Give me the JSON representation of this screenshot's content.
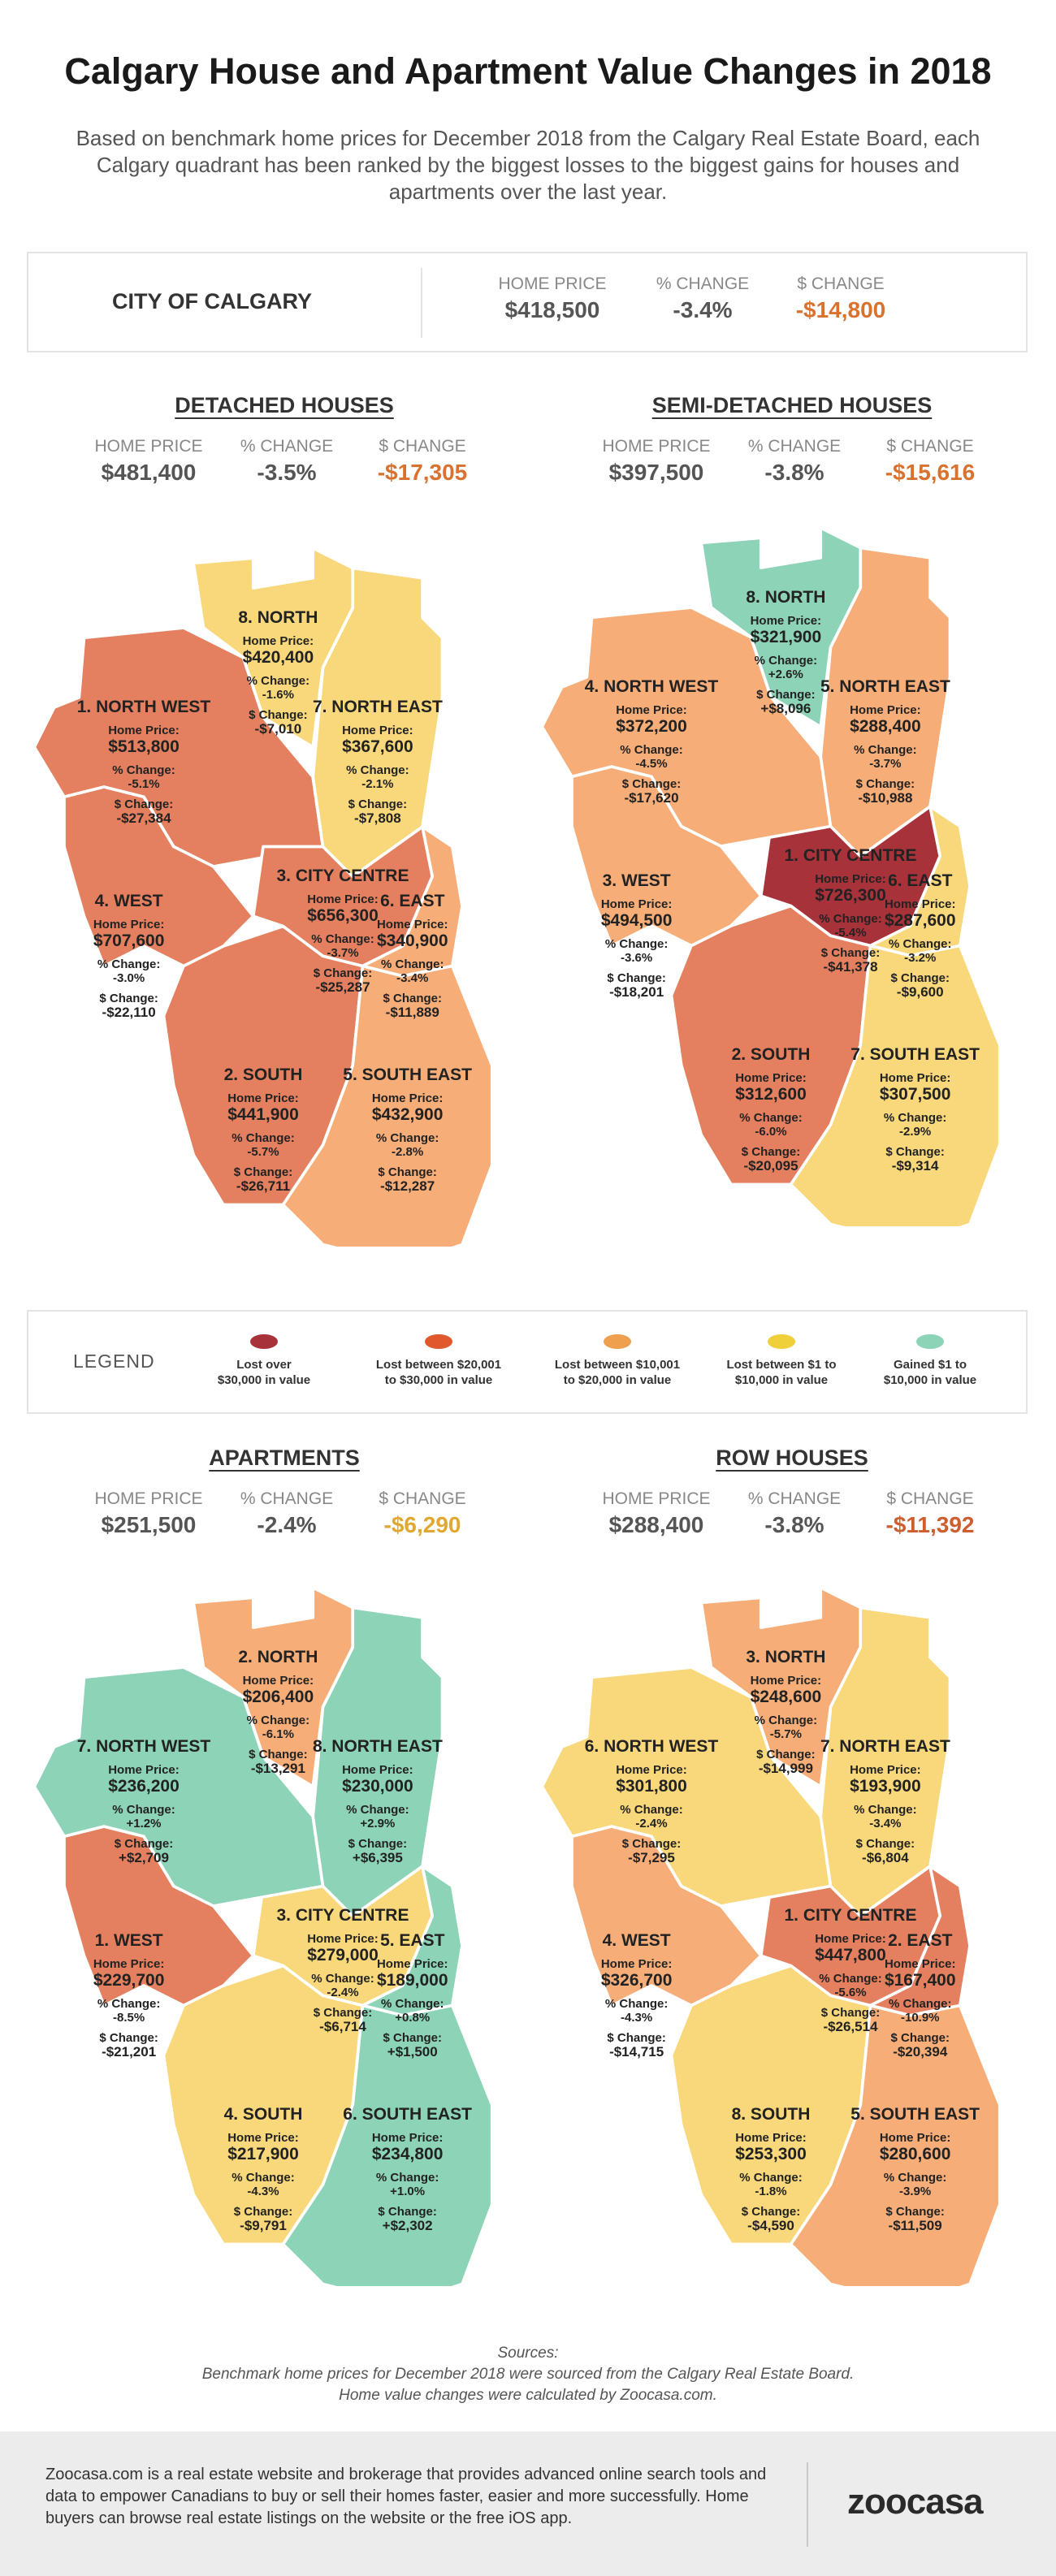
{
  "title": "Calgary House and Apartment Value Changes in 2018",
  "subtitle": "Based on benchmark home prices for December 2018 from the Calgary Real Estate Board, each Calgary quadrant has been ranked by the biggest losses to the biggest gains for houses and apartments over the last year.",
  "colors": {
    "lost_over_30000": "#a8323a",
    "lost_20001_30000": "#e4805f",
    "lost_10001_20000": "#f6ad78",
    "lost_1_10000": "#f8d87a",
    "gained_1_10000": "#8dd3b8"
  },
  "city": {
    "name": "CITY OF CALGARY",
    "home_price_label": "HOME PRICE",
    "pct_label": "% CHANGE",
    "dollar_label": "$ CHANGE",
    "home_price": "$418,500",
    "pct_change": "-3.4%",
    "dollar_change": "-$14,800"
  },
  "labels": {
    "home_price": "Home Price:",
    "pct_change": "% Change:",
    "dollar_change": "$ Change:"
  },
  "sections": {
    "detached": {
      "title": "DETACHED HOUSES",
      "home_price_label": "HOME PRICE",
      "pct_label": "% CHANGE",
      "dollar_label": "$ CHANGE",
      "home_price": "$481,400",
      "pct_change": "-3.5%",
      "dollar_change": "-$17,305",
      "regions": [
        {
          "name": "1. NORTH WEST",
          "price": "$513,800",
          "pct": "-5.1%",
          "dollar": "-$27,384",
          "fill": "lost_20001_30000"
        },
        {
          "name": "2. SOUTH",
          "price": "$441,900",
          "pct": "-5.7%",
          "dollar": "-$26,711",
          "fill": "lost_20001_30000"
        },
        {
          "name": "3. CITY CENTRE",
          "price": "$656,300",
          "pct": "-3.7%",
          "dollar": "-$25,287",
          "fill": "lost_20001_30000"
        },
        {
          "name": "4. WEST",
          "price": "$707,600",
          "pct": "-3.0%",
          "dollar": "-$22,110",
          "fill": "lost_20001_30000"
        },
        {
          "name": "5. SOUTH EAST",
          "price": "$432,900",
          "pct": "-2.8%",
          "dollar": "-$12,287",
          "fill": "lost_10001_20000"
        },
        {
          "name": "6. EAST",
          "price": "$340,900",
          "pct": "-3.4%",
          "dollar": "-$11,889",
          "fill": "lost_10001_20000"
        },
        {
          "name": "7. NORTH EAST",
          "price": "$367,600",
          "pct": "-2.1%",
          "dollar": "-$7,808",
          "fill": "lost_1_10000"
        },
        {
          "name": "8. NORTH",
          "price": "$420,400",
          "pct": "-1.6%",
          "dollar": "-$7,010",
          "fill": "lost_1_10000"
        }
      ]
    },
    "semi": {
      "title": "SEMI-DETACHED HOUSES",
      "home_price_label": "HOME PRICE",
      "pct_label": "% CHANGE",
      "dollar_label": "$ CHANGE",
      "home_price": "$397,500",
      "pct_change": "-3.8%",
      "dollar_change": "-$15,616",
      "regions": [
        {
          "name": "1. CITY CENTRE",
          "price": "$726,300",
          "pct": "-5.4%",
          "dollar": "-$41,378",
          "fill": "lost_over_30000"
        },
        {
          "name": "2. SOUTH",
          "price": "$312,600",
          "pct": "-6.0%",
          "dollar": "-$20,095",
          "fill": "lost_20001_30000"
        },
        {
          "name": "3. WEST",
          "price": "$494,500",
          "pct": "-3.6%",
          "dollar": "-$18,201",
          "fill": "lost_10001_20000"
        },
        {
          "name": "4. NORTH WEST",
          "price": "$372,200",
          "pct": "-4.5%",
          "dollar": "-$17,620",
          "fill": "lost_10001_20000"
        },
        {
          "name": "5. NORTH EAST",
          "price": "$288,400",
          "pct": "-3.7%",
          "dollar": "-$10,988",
          "fill": "lost_10001_20000"
        },
        {
          "name": "6. EAST",
          "price": "$287,600",
          "pct": "-3.2%",
          "dollar": "-$9,600",
          "fill": "lost_1_10000"
        },
        {
          "name": "7. SOUTH EAST",
          "price": "$307,500",
          "pct": "-2.9%",
          "dollar": "-$9,314",
          "fill": "lost_1_10000"
        },
        {
          "name": "8. NORTH",
          "price": "$321,900",
          "pct": "+2.6%",
          "dollar": "+$8,096",
          "fill": "gained_1_10000"
        }
      ]
    },
    "apartments": {
      "title": "APARTMENTS",
      "home_price_label": "HOME PRICE",
      "pct_label": "% CHANGE",
      "dollar_label": "$ CHANGE",
      "home_price": "$251,500",
      "pct_change": "-2.4%",
      "dollar_change": "-$6,290",
      "regions": [
        {
          "name": "1. WEST",
          "price": "$229,700",
          "pct": "-8.5%",
          "dollar": "-$21,201",
          "fill": "lost_20001_30000"
        },
        {
          "name": "2. NORTH",
          "price": "$206,400",
          "pct": "-6.1%",
          "dollar": "-$13,291",
          "fill": "lost_10001_20000"
        },
        {
          "name": "4. SOUTH",
          "price": "$217,900",
          "pct": "-4.3%",
          "dollar": "-$9,791",
          "fill": "lost_1_10000"
        },
        {
          "name": "3. CITY CENTRE",
          "price": "$279,000",
          "pct": "-2.4%",
          "dollar": "-$6,714",
          "fill": "lost_1_10000"
        },
        {
          "name": "5. EAST",
          "price": "$189,000",
          "pct": "+0.8%",
          "dollar": "+$1,500",
          "fill": "gained_1_10000"
        },
        {
          "name": "6. SOUTH EAST",
          "price": "$234,800",
          "pct": "+1.0%",
          "dollar": "+$2,302",
          "fill": "gained_1_10000"
        },
        {
          "name": "7. NORTH WEST",
          "price": "$236,200",
          "pct": "+1.2%",
          "dollar": "+$2,709",
          "fill": "gained_1_10000"
        },
        {
          "name": "8. NORTH EAST",
          "price": "$230,000",
          "pct": "+2.9%",
          "dollar": "+$6,395",
          "fill": "gained_1_10000"
        }
      ]
    },
    "row": {
      "title": "ROW HOUSES",
      "home_price_label": "HOME PRICE",
      "pct_label": "% CHANGE",
      "dollar_label": "$ CHANGE",
      "home_price": "$288,400",
      "pct_change": "-3.8%",
      "dollar_change": "-$11,392",
      "regions": [
        {
          "name": "1. CITY CENTRE",
          "price": "$447,800",
          "pct": "-5.6%",
          "dollar": "-$26,514",
          "fill": "lost_20001_30000"
        },
        {
          "name": "2. EAST",
          "price": "$167,400",
          "pct": "-10.9%",
          "dollar": "-$20,394",
          "fill": "lost_20001_30000"
        },
        {
          "name": "3. NORTH",
          "price": "$248,600",
          "pct": "-5.7%",
          "dollar": "-$14,999",
          "fill": "lost_10001_20000"
        },
        {
          "name": "4. WEST",
          "price": "$326,700",
          "pct": "-4.3%",
          "dollar": "-$14,715",
          "fill": "lost_10001_20000"
        },
        {
          "name": "5. SOUTH EAST",
          "price": "$280,600",
          "pct": "-3.9%",
          "dollar": "-$11,509",
          "fill": "lost_10001_20000"
        },
        {
          "name": "6. NORTH WEST",
          "price": "$301,800",
          "pct": "-2.4%",
          "dollar": "-$7,295",
          "fill": "lost_1_10000"
        },
        {
          "name": "7. NORTH EAST",
          "price": "$193,900",
          "pct": "-3.4%",
          "dollar": "-$6,804",
          "fill": "lost_1_10000"
        },
        {
          "name": "8. SOUTH",
          "price": "$253,300",
          "pct": "-1.8%",
          "dollar": "-$4,590",
          "fill": "lost_1_10000"
        }
      ]
    }
  },
  "legend": {
    "title": "LEGEND",
    "items": [
      {
        "line1": "Lost over",
        "line2": "$30,000 in value",
        "color": "#a8323a"
      },
      {
        "line1": "Lost between $20,001",
        "line2": "to $30,000 in value",
        "color": "#e0582c"
      },
      {
        "line1": "Lost between $10,001",
        "line2": "to $20,000 in value",
        "color": "#eea04f"
      },
      {
        "line1": "Lost between $1 to",
        "line2": "$10,000 in value",
        "color": "#efcf3a"
      },
      {
        "line1": "Gained $1 to",
        "line2": "$10,000 in value",
        "color": "#8dd3b8"
      }
    ]
  },
  "sources": {
    "heading": "Sources:",
    "line1": "Benchmark home prices for December 2018 were sourced from the Calgary Real Estate Board.",
    "line2": "Home value changes were calculated by Zoocasa.com."
  },
  "footer": {
    "text": "Zoocasa.com is a real estate website and brokerage that provides advanced online search tools and data to empower Canadians to buy or sell their homes faster, easier and more successfully. Home buyers can browse real estate listings on the website or the free iOS app.",
    "logo": "zoocasa"
  }
}
